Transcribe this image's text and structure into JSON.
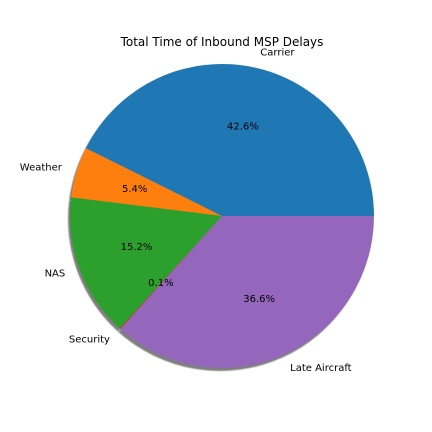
{
  "chart_data": {
    "type": "pie",
    "title": "Total Time of Inbound MSP Delays",
    "categories": [
      "Carrier",
      "Weather",
      "NAS",
      "Security",
      "Late Aircraft"
    ],
    "values": [
      42.6,
      5.4,
      15.2,
      0.1,
      36.6
    ],
    "percent_labels": [
      "42.6%",
      "5.4%",
      "15.2%",
      "0.1%",
      "36.6%"
    ],
    "colors": [
      "#1f77b4",
      "#ff7f0e",
      "#2ca02c",
      "#d62728",
      "#9467bd"
    ],
    "start_angle_deg": 0,
    "direction": "counterclockwise",
    "shadow": true,
    "legend": "none"
  }
}
